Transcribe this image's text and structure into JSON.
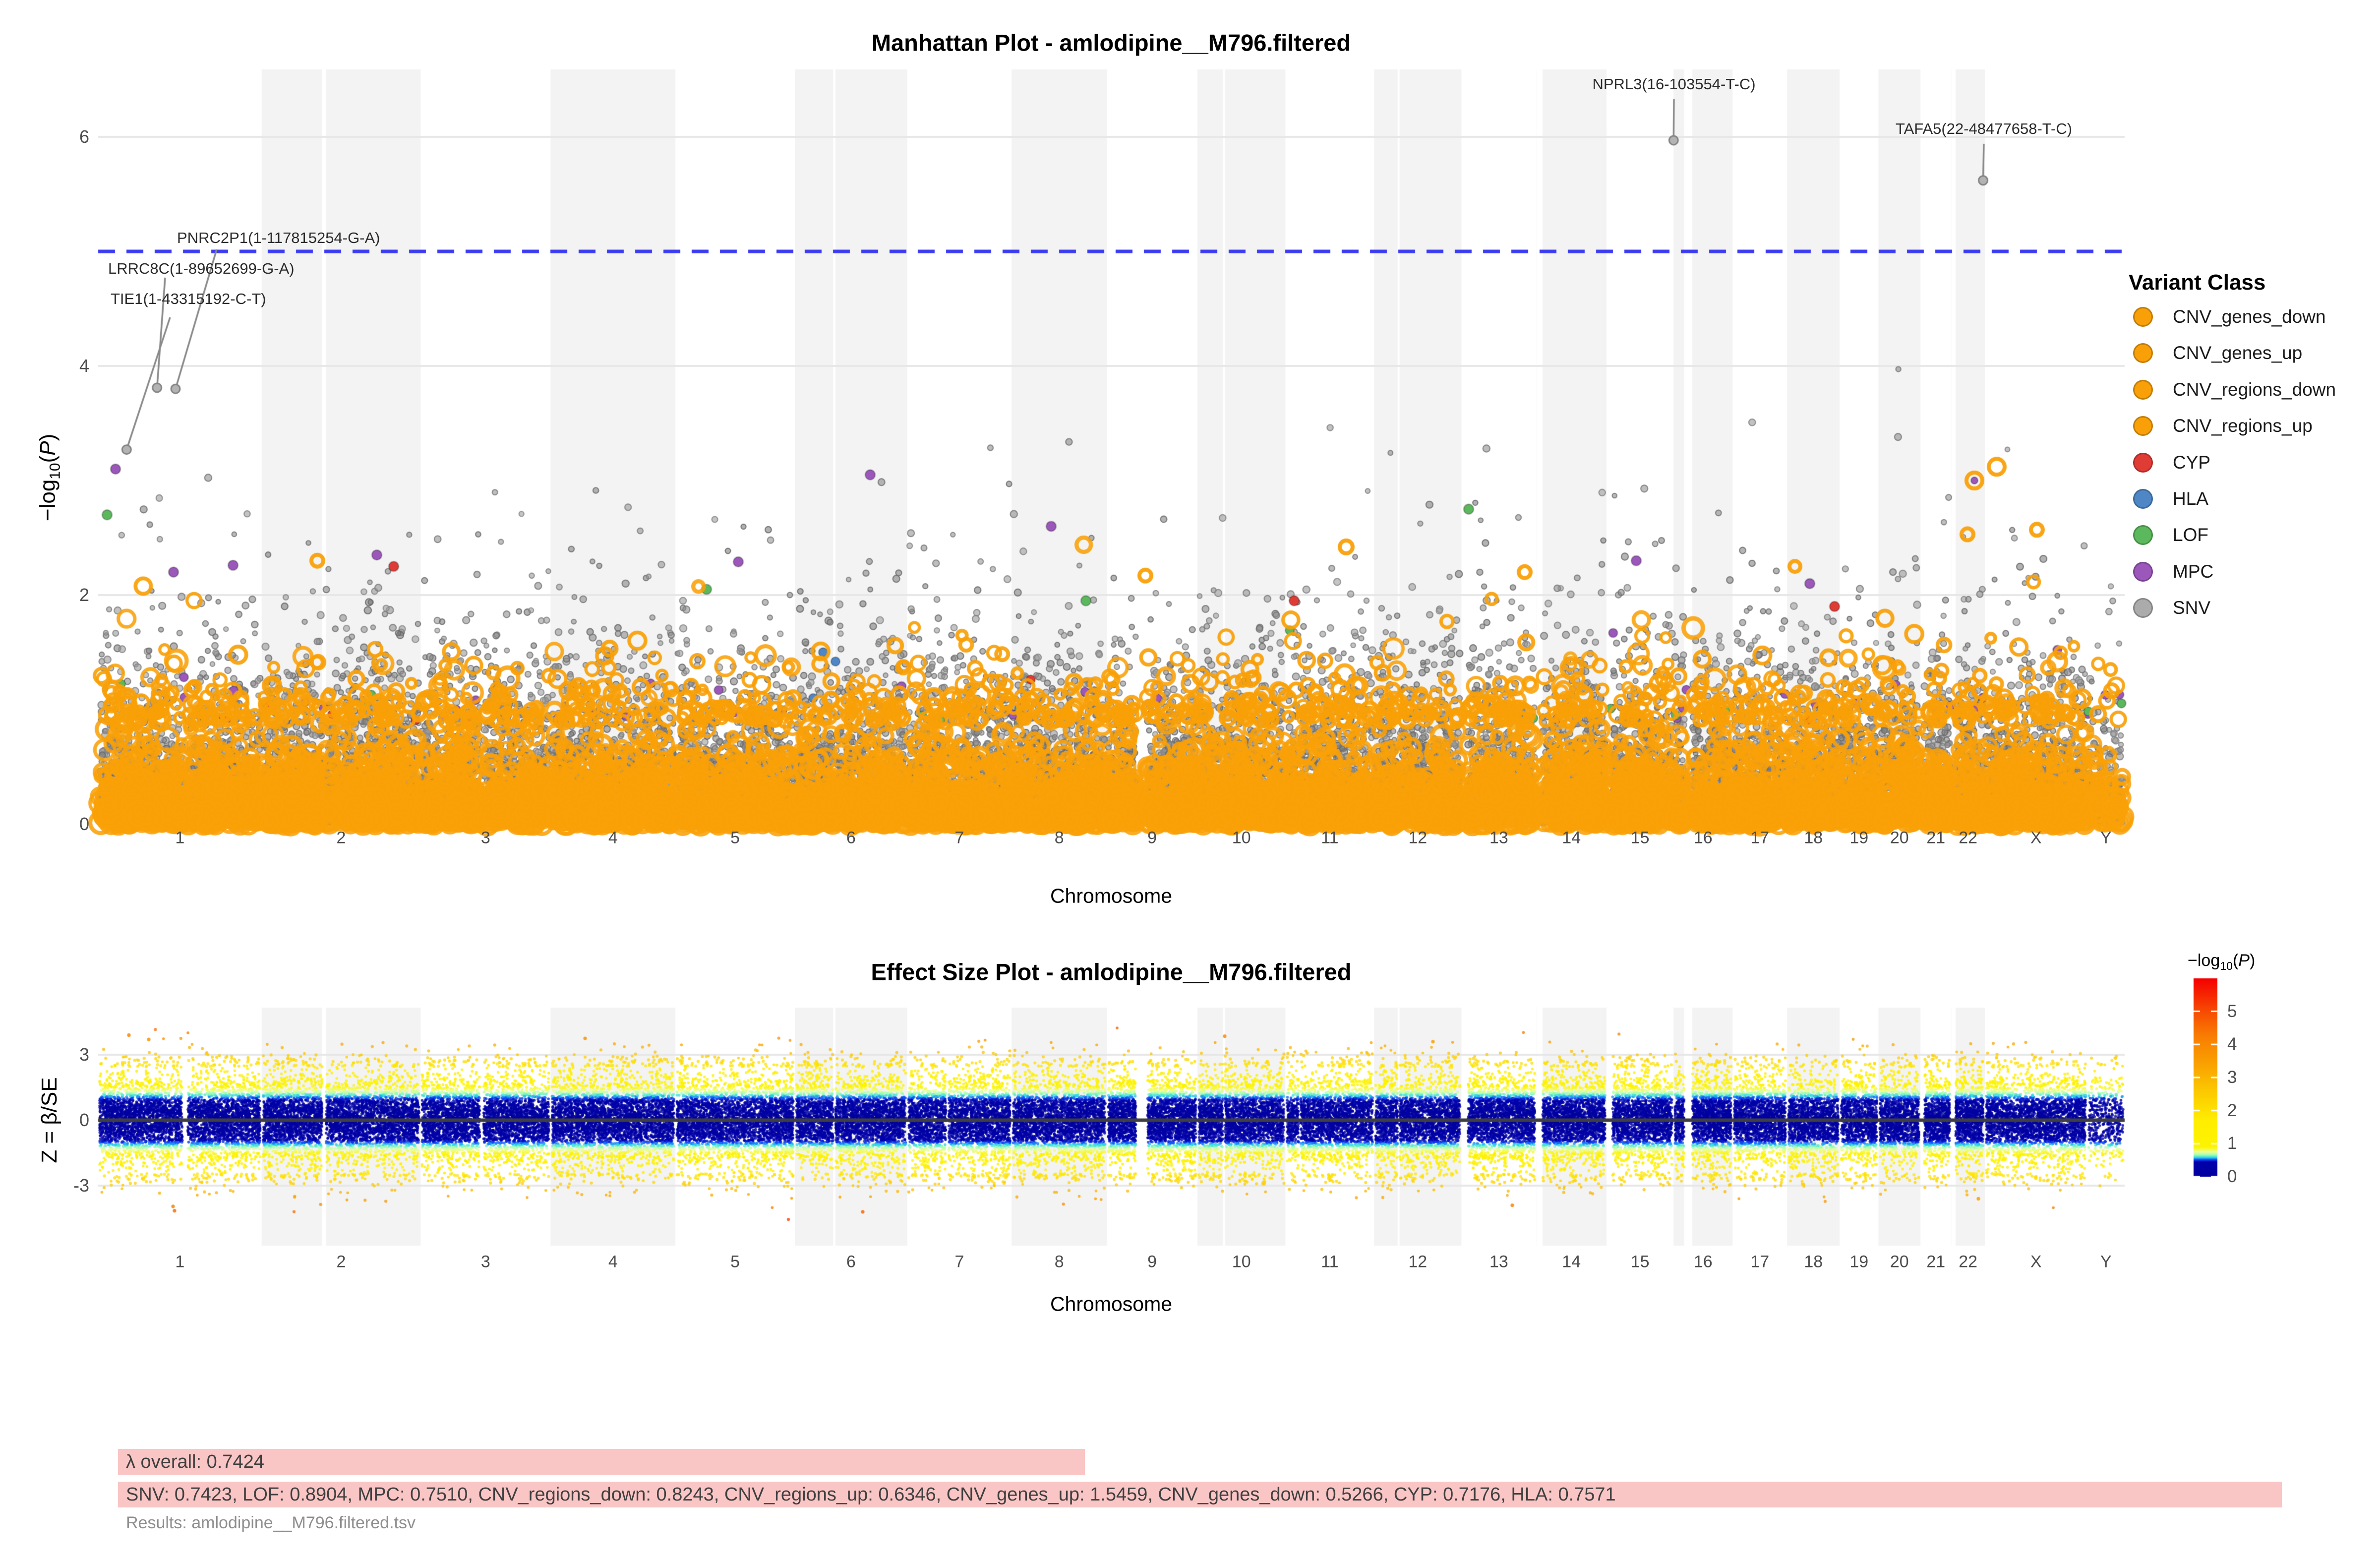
{
  "stats": {
    "lambda_overall_text": "λ overall: 0.7424",
    "lambda_by_class_text": "SNV: 0.7423, LOF: 0.8904, MPC: 0.7510, CNV_regions_down: 0.8243, CNV_regions_up: 0.6346, CNV_genes_up: 1.5459, CNV_genes_down: 0.5266, CYP: 0.7176, HLA: 0.7571",
    "results_file_text": "Results: amlodipine__M796.filtered.tsv",
    "highlight_color": "#FAC5C5",
    "lambda_values": {
      "overall": 0.7424,
      "SNV": 0.7423,
      "LOF": 0.8904,
      "MPC": 0.751,
      "CNV_regions_down": 0.8243,
      "CNV_regions_up": 0.6346,
      "CNV_genes_up": 1.5459,
      "CNV_genes_down": 0.5266,
      "CYP": 0.7176,
      "HLA": 0.7571
    }
  },
  "chart_data": [
    {
      "type": "scatter",
      "subtype": "manhattan",
      "title": "Manhattan Plot - amlodipine__M796.filtered",
      "xlabel": "Chromosome",
      "ylabel_parts": {
        "pre": "−log",
        "sub": "10",
        "lp": "(",
        "varname": "P",
        "rp": ")"
      },
      "ylim": [
        0,
        6.6
      ],
      "yticks": [
        6,
        4,
        2,
        0
      ],
      "grid": true,
      "suggestive_line": {
        "value": 5,
        "color": "#3B3BF2",
        "style": "dashed"
      },
      "chromosomes": [
        {
          "name": "1",
          "size_mb": 249,
          "shaded": false,
          "gaps": [
            [
              0.515,
              0.548
            ]
          ],
          "density": 1
        },
        {
          "name": "2",
          "size_mb": 242,
          "shaded": true,
          "gaps": [
            [
              0.38,
              0.405
            ]
          ],
          "density": 1
        },
        {
          "name": "3",
          "size_mb": 198,
          "shaded": false,
          "gaps": [
            [
              0.455,
              0.485
            ]
          ],
          "density": 1
        },
        {
          "name": "4",
          "size_mb": 190,
          "shaded": true,
          "gaps": [],
          "density": 1
        },
        {
          "name": "5",
          "size_mb": 182,
          "shaded": false,
          "gaps": [],
          "density": 1
        },
        {
          "name": "6",
          "size_mb": 171,
          "shaded": true,
          "gaps": [
            [
              0.34,
              0.362
            ]
          ],
          "density": 1
        },
        {
          "name": "7",
          "size_mb": 159,
          "shaded": false,
          "gaps": [
            [
              0.37,
              0.398
            ]
          ],
          "density": 1
        },
        {
          "name": "8",
          "size_mb": 145,
          "shaded": true,
          "gaps": [],
          "density": 1
        },
        {
          "name": "9",
          "size_mb": 138,
          "shaded": false,
          "gaps": [
            [
              0.32,
              0.45
            ]
          ],
          "density": 1
        },
        {
          "name": "10",
          "size_mb": 134,
          "shaded": true,
          "gaps": [
            [
              0.29,
              0.315
            ]
          ],
          "density": 1
        },
        {
          "name": "11",
          "size_mb": 135,
          "shaded": false,
          "gaps": [
            [
              0.15,
              0.172
            ]
          ],
          "density": 1
        },
        {
          "name": "12",
          "size_mb": 133,
          "shaded": true,
          "gaps": [
            [
              0.27,
              0.292
            ]
          ],
          "density": 1
        },
        {
          "name": "13",
          "size_mb": 114,
          "shaded": false,
          "gaps": [
            [
              0,
              0.09
            ]
          ],
          "density": 1
        },
        {
          "name": "14",
          "size_mb": 107,
          "shaded": true,
          "gaps": [
            [
              0,
              0.09
            ]
          ],
          "density": 1
        },
        {
          "name": "15",
          "size_mb": 102,
          "shaded": false,
          "gaps": [
            [
              0,
              0.09
            ]
          ],
          "density": 1
        },
        {
          "name": "16",
          "size_mb": 90,
          "shaded": true,
          "gaps": [
            [
              0.18,
              0.32
            ]
          ],
          "density": 1
        },
        {
          "name": "17",
          "size_mb": 83,
          "shaded": false,
          "gaps": [],
          "density": 1
        },
        {
          "name": "18",
          "size_mb": 80,
          "shaded": true,
          "gaps": [],
          "density": 1
        },
        {
          "name": "19",
          "size_mb": 59,
          "shaded": false,
          "gaps": [],
          "density": 1
        },
        {
          "name": "20",
          "size_mb": 64,
          "shaded": true,
          "gaps": [],
          "density": 1
        },
        {
          "name": "21",
          "size_mb": 47,
          "shaded": false,
          "gaps": [
            [
              0,
              0.13
            ]
          ],
          "density": 1
        },
        {
          "name": "22",
          "size_mb": 51,
          "shaded": true,
          "gaps": [
            [
              0,
              0.13
            ]
          ],
          "density": 1
        },
        {
          "name": "X",
          "size_mb": 156,
          "shaded": false,
          "gaps": [],
          "density": 1
        },
        {
          "name": "Y",
          "size_mb": 57,
          "shaded": false,
          "gaps": [],
          "density": 0.45
        }
      ],
      "annotations": [
        {
          "label": "PNRC2P1(1-117815254-G-A)",
          "chrom": "1",
          "pos_mb": 117.8,
          "neglog10p": 3.8
        },
        {
          "label": "LRRC8C(1-89652699-G-A)",
          "chrom": "1",
          "pos_mb": 89.65,
          "neglog10p": 3.81
        },
        {
          "label": "TIE1(1-43315192-C-T)",
          "chrom": "1",
          "pos_mb": 43.3,
          "neglog10p": 3.27
        },
        {
          "label": "NPRL3(16-103554-T-C)",
          "chrom": "16",
          "pos_mb": 0.104,
          "neglog10p": 5.97
        },
        {
          "label": "TAFA5(22-48477658-T-C)",
          "chrom": "22",
          "pos_mb": 48.48,
          "neglog10p": 5.62
        }
      ],
      "legend": {
        "title": "Variant Class",
        "items": [
          {
            "label": "CNV_genes_down",
            "color": "#F9A008"
          },
          {
            "label": "CNV_genes_up",
            "color": "#F9A008"
          },
          {
            "label": "CNV_regions_down",
            "color": "#F9A008"
          },
          {
            "label": "CNV_regions_up",
            "color": "#F9A008"
          },
          {
            "label": "CYP",
            "color": "#E03C36"
          },
          {
            "label": "HLA",
            "color": "#4F86C6"
          },
          {
            "label": "LOF",
            "color": "#5CB85C"
          },
          {
            "label": "MPC",
            "color": "#9C57BB"
          },
          {
            "label": "SNV",
            "color": "#ABABAB"
          }
        ]
      },
      "point_colors": {
        "SNV": "#8C8C8C",
        "CNV": "#F9A008",
        "CYP": "#E03C36",
        "HLA": "#4F86C6",
        "LOF": "#5CB85C",
        "MPC": "#9C57BB"
      }
    },
    {
      "type": "scatter",
      "subtype": "effect-size",
      "title": "Effect Size Plot - amlodipine__M796.filtered",
      "xlabel": "Chromosome",
      "ylabel": "Z = β/SE",
      "ylim": [
        -5.7,
        5.2
      ],
      "yticks": [
        3,
        0,
        -3
      ],
      "zero_line": 0,
      "colorbar": {
        "title_parts": {
          "pre": "−log",
          "sub": "10",
          "lp": "(",
          "varname": "P",
          "rp": ")"
        },
        "ticks": [
          5,
          4,
          3,
          2,
          1,
          0
        ],
        "range": [
          0,
          6
        ],
        "stops": [
          {
            "v": 0.0,
            "color": "#00009E"
          },
          {
            "v": 0.45,
            "color": "#0000AC"
          },
          {
            "v": 0.52,
            "color": "#1450FF"
          },
          {
            "v": 0.58,
            "color": "#28D8E6"
          },
          {
            "v": 0.66,
            "color": "#A0FFB4"
          },
          {
            "v": 0.75,
            "color": "#EBFF96"
          },
          {
            "v": 0.9,
            "color": "#FDF400"
          },
          {
            "v": 1.7,
            "color": "#FFEE00"
          },
          {
            "v": 2.6,
            "color": "#FCC800"
          },
          {
            "v": 3.4,
            "color": "#FAA201"
          },
          {
            "v": 4.3,
            "color": "#F97B02"
          },
          {
            "v": 5.1,
            "color": "#F74403"
          },
          {
            "v": 6.0,
            "color": "#F50000"
          }
        ]
      }
    }
  ]
}
